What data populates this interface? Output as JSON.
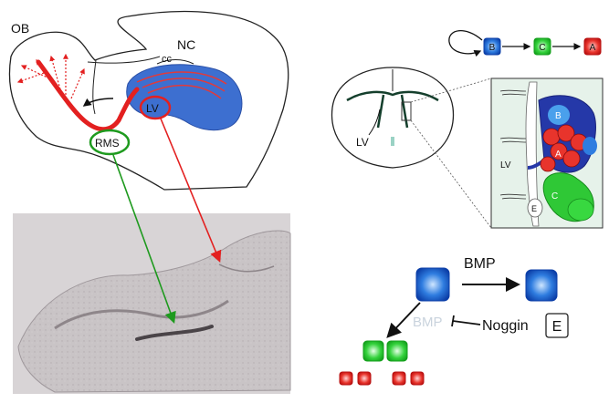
{
  "sagittal": {
    "labels": {
      "ob": "OB",
      "nc": "NC",
      "cc": "cc",
      "lv": "LV",
      "rms": "RMS"
    }
  },
  "lineage": {
    "top": {
      "b": "B",
      "c": "C",
      "a": "A"
    },
    "coronal_lv": "LV",
    "inset": {
      "b": "B",
      "a": "A",
      "c": "C",
      "e": "E",
      "lv": "LV"
    }
  },
  "signaling": {
    "bmp_top": "BMP",
    "bmp_faded": "BMP",
    "noggin": "Noggin",
    "e_box": "E"
  },
  "colors": {
    "red_arrow": "#e32020",
    "green_arrow": "#1e9a1e",
    "cell_b": "#1a5fd6",
    "cell_c": "#22c52a",
    "cell_a": "#e0251f",
    "lv_blue": "#3d6fd0"
  }
}
